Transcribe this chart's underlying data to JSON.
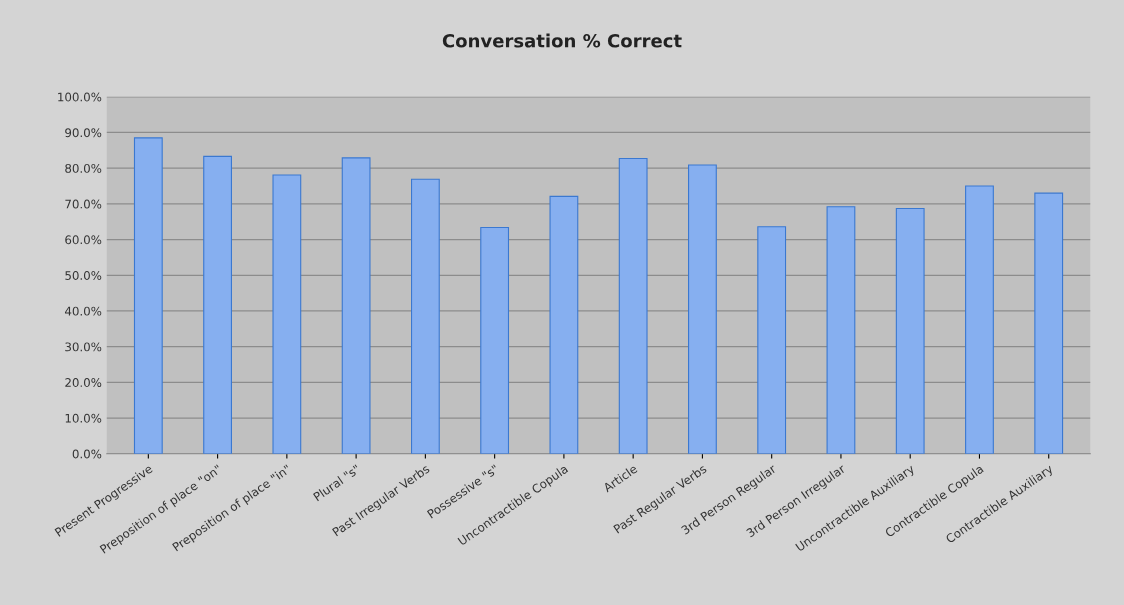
{
  "chart_data": {
    "type": "bar",
    "title": "Conversation % Correct",
    "categories": [
      "Present Progressive",
      "Preposition of place \"on\"",
      "Preposition of place \"in\"",
      "Plural \"s\"",
      "Past Irregular Verbs",
      "Possessive \"s\"",
      "Uncontractible Copula",
      "Article",
      "Past Regular Verbs",
      "3rd Person Regular",
      "3rd Person Irregular",
      "Uncontractible Auxiliary",
      "Contractible Copula",
      "Contractible Auxiliary"
    ],
    "values": [
      88.5,
      83.3,
      78.1,
      82.9,
      76.9,
      63.4,
      72.1,
      82.7,
      80.9,
      63.6,
      69.2,
      68.7,
      75.0,
      73.0
    ],
    "color": "#86aff0",
    "ylim": [
      0,
      100
    ],
    "yticks": [
      {
        "value": 0,
        "label": "0.0%"
      },
      {
        "value": 10,
        "label": "10.0%"
      },
      {
        "value": 20,
        "label": "20.0%"
      },
      {
        "value": 30,
        "label": "30.0%"
      },
      {
        "value": 40,
        "label": "40.0%"
      },
      {
        "value": 50,
        "label": "50.0%"
      },
      {
        "value": 60,
        "label": "60.0%"
      },
      {
        "value": 70,
        "label": "70.0%"
      },
      {
        "value": 80,
        "label": "80.0%"
      },
      {
        "value": 90,
        "label": "90.0%"
      },
      {
        "value": 100,
        "label": "100.0%"
      }
    ],
    "grid": "y"
  }
}
